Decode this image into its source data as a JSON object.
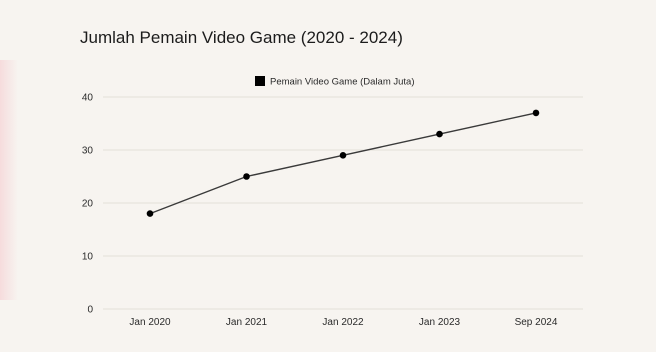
{
  "chart_data": {
    "type": "line",
    "title": "Jumlah Pemain Video Game (2020 - 2024)",
    "categories": [
      "Jan 2020",
      "Jan 2021",
      "Jan 2022",
      "Jan 2023",
      "Sep 2024"
    ],
    "series": [
      {
        "name": "Pemain Video Game (Dalam Juta)",
        "values": [
          18,
          25,
          29,
          33,
          37
        ],
        "color": "#000000"
      }
    ],
    "yticks": [
      0,
      10,
      20,
      30,
      40
    ],
    "ylim": [
      0,
      40
    ],
    "grid": true,
    "legend_position": "top",
    "colors": {
      "background": "#f7f4f0",
      "grid": "#e3dfd9",
      "line": "#3a3a3a",
      "marker": "#000000",
      "text": "#1c1c1c"
    }
  }
}
